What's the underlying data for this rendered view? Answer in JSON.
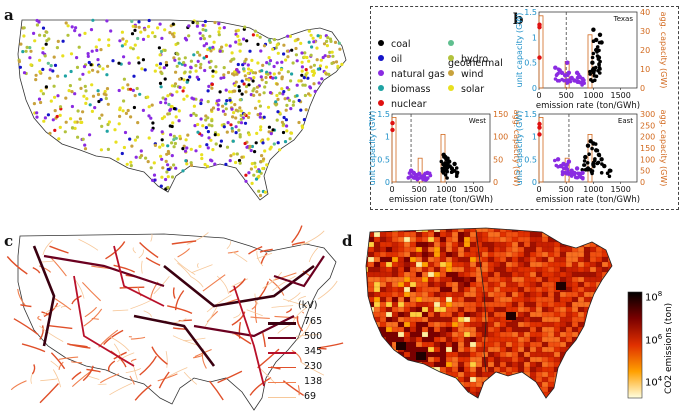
{
  "panels": {
    "a": {
      "letter": "a",
      "legend": [
        {
          "label": "coal",
          "color": "#000000"
        },
        {
          "label": "oil",
          "color": "#1515c8"
        },
        {
          "label": "natural gas",
          "color": "#8a2be2"
        },
        {
          "label": "biomass",
          "color": "#1fa3a3"
        },
        {
          "label": "nuclear",
          "color": "#e01010"
        },
        {
          "label": "geothermal",
          "color": "#5fbf8f"
        },
        {
          "label": "hydro",
          "color": "#b2c23c"
        },
        {
          "label": "wind",
          "color": "#c8a23c"
        },
        {
          "label": "solar",
          "color": "#e8e020"
        }
      ]
    },
    "b": {
      "letter": "b",
      "xlabel": "emission rate (ton/GWh)",
      "ylabel_left": "unit capacity (GW)",
      "ylabel_right": "agg. capacity (GW)",
      "left_color": "#1e90c8",
      "right_color": "#d2691e"
    },
    "c": {
      "letter": "c",
      "legend_title": "(kV)",
      "legend": [
        {
          "label": "765",
          "color": "#3a0010",
          "width": 2.6
        },
        {
          "label": "500",
          "color": "#6b0020",
          "width": 2.2
        },
        {
          "label": "345",
          "color": "#b8102a",
          "width": 1.8
        },
        {
          "label": "230",
          "color": "#e0502a",
          "width": 1.4
        },
        {
          "label": "138",
          "color": "#f08050",
          "width": 1.1
        },
        {
          "label": "69",
          "color": "#f7c89a",
          "width": 0.8
        }
      ]
    },
    "d": {
      "letter": "d",
      "colorbar_label": "CO2 emissions (ton)",
      "ticks": [
        "10^8",
        "10^6",
        "10^4"
      ]
    }
  },
  "chart_data": [
    {
      "type": "scatter",
      "title": "Texas",
      "xlabel": "emission rate (ton/GWh)",
      "ylabel": "unit capacity (GW)",
      "y2label": "agg. capacity (GW)",
      "xlim": [
        0,
        1800
      ],
      "ylim": [
        0,
        1.5
      ],
      "y2lim": [
        0,
        40
      ],
      "xticks": [
        "0",
        "500",
        "1000",
        "1500"
      ],
      "yticks": [
        "0",
        "0.5",
        "1",
        "1.5"
      ],
      "y2ticks": [
        "0",
        "10",
        "20",
        "30",
        "40"
      ],
      "dashed_line_x": 500,
      "series": [
        {
          "name": "coal",
          "color": "#000000",
          "points": [
            [
              1000,
              1.15
            ],
            [
              1050,
              0.95
            ],
            [
              1100,
              0.6
            ],
            [
              1150,
              0.9
            ],
            [
              980,
              0.5
            ],
            [
              1050,
              0.75
            ],
            [
              1120,
              1.05
            ],
            [
              1010,
              0.35
            ]
          ]
        },
        {
          "name": "natural gas",
          "color": "#8a2be2",
          "points": [
            [
              300,
              0.4
            ],
            [
              420,
              0.3
            ],
            [
              480,
              0.25
            ],
            [
              550,
              0.3
            ],
            [
              600,
              0.2
            ],
            [
              650,
              0.15
            ],
            [
              700,
              0.3
            ],
            [
              750,
              0.22
            ],
            [
              800,
              0.18
            ],
            [
              520,
              0.5
            ],
            [
              380,
              0.35
            ]
          ]
        },
        {
          "name": "nuclear",
          "color": "#e01010",
          "points": [
            [
              10,
              1.25
            ],
            [
              10,
              1.2
            ],
            [
              10,
              0.6
            ]
          ]
        }
      ]
    },
    {
      "type": "scatter",
      "title": "West",
      "xlabel": "emission rate (ton/GWh)",
      "ylabel": "unit capacity (GW)",
      "y2label": "agg. capacity (GW)",
      "xlim": [
        0,
        1800
      ],
      "ylim": [
        0,
        1.5
      ],
      "y2lim": [
        0,
        150
      ],
      "xticks": [
        "0",
        "500",
        "1000",
        "1500"
      ],
      "yticks": [
        "0",
        "0.5",
        "1",
        "1.5"
      ],
      "y2ticks": [
        "0",
        "50",
        "100",
        "150"
      ],
      "dashed_line_x": 350,
      "series": [
        {
          "name": "coal",
          "color": "#000000",
          "points": [
            [
              950,
              0.6
            ],
            [
              1000,
              0.5
            ],
            [
              1050,
              0.45
            ],
            [
              1100,
              0.3
            ],
            [
              1000,
              0.25
            ],
            [
              1150,
              0.4
            ],
            [
              980,
              0.55
            ]
          ]
        },
        {
          "name": "natural gas",
          "color": "#8a2be2",
          "points": [
            [
              350,
              0.25
            ],
            [
              400,
              0.2
            ],
            [
              450,
              0.15
            ],
            [
              500,
              0.18
            ],
            [
              550,
              0.12
            ],
            [
              600,
              0.1
            ],
            [
              650,
              0.2
            ]
          ]
        },
        {
          "name": "nuclear",
          "color": "#e01010",
          "points": [
            [
              10,
              1.3
            ],
            [
              10,
              1.15
            ]
          ]
        }
      ]
    },
    {
      "type": "scatter",
      "title": "East",
      "xlabel": "emission rate (ton/GWh)",
      "ylabel": "unit capacity (GW)",
      "y2label": "agg. capacity (GW)",
      "xlim": [
        0,
        1800
      ],
      "ylim": [
        0,
        1.5
      ],
      "y2lim": [
        0,
        300
      ],
      "xticks": [
        "0",
        "500",
        "1000",
        "1500"
      ],
      "yticks": [
        "0",
        "0.5",
        "1",
        "1.5"
      ],
      "y2ticks": [
        "0",
        "50",
        "100",
        "150",
        "200",
        "250",
        "300"
      ],
      "dashed_line_x": 550,
      "series": [
        {
          "name": "coal",
          "color": "#000000",
          "points": [
            [
              900,
              0.8
            ],
            [
              950,
              0.9
            ],
            [
              1000,
              0.85
            ],
            [
              1050,
              0.7
            ],
            [
              1100,
              0.6
            ],
            [
              1150,
              0.5
            ],
            [
              1000,
              0.4
            ],
            [
              900,
              0.3
            ],
            [
              1200,
              0.35
            ],
            [
              1300,
              0.25
            ],
            [
              850,
              0.55
            ]
          ]
        },
        {
          "name": "natural gas",
          "color": "#8a2be2",
          "points": [
            [
              350,
              0.5
            ],
            [
              400,
              0.35
            ],
            [
              450,
              0.4
            ],
            [
              500,
              0.3
            ],
            [
              600,
              0.25
            ],
            [
              650,
              0.2
            ],
            [
              700,
              0.3
            ],
            [
              750,
              0.18
            ],
            [
              800,
              0.2
            ],
            [
              550,
              0.45
            ]
          ]
        },
        {
          "name": "nuclear",
          "color": "#e01010",
          "points": [
            [
              10,
              1.28
            ],
            [
              10,
              1.2
            ],
            [
              10,
              1.05
            ]
          ]
        }
      ]
    }
  ]
}
